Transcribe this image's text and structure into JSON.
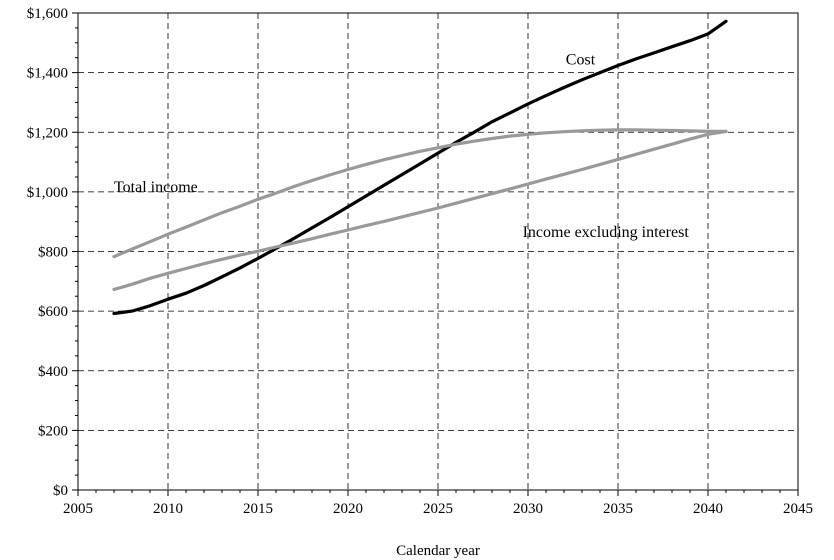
{
  "chart_data": {
    "type": "line",
    "title": "",
    "xlabel": "Calendar year",
    "ylabel": "",
    "xlim": [
      2005,
      2045
    ],
    "ylim": [
      0,
      1600
    ],
    "grid": true,
    "legend": "none",
    "xticks": [
      {
        "value": 2005,
        "label": "2005"
      },
      {
        "value": 2010,
        "label": "2010"
      },
      {
        "value": 2015,
        "label": "2015"
      },
      {
        "value": 2020,
        "label": "2020"
      },
      {
        "value": 2025,
        "label": "2025"
      },
      {
        "value": 2030,
        "label": "2030"
      },
      {
        "value": 2035,
        "label": "2035"
      },
      {
        "value": 2040,
        "label": "2040"
      },
      {
        "value": 2045,
        "label": "2045"
      }
    ],
    "yticks": [
      {
        "value": 0,
        "label": "$0"
      },
      {
        "value": 200,
        "label": "$200"
      },
      {
        "value": 400,
        "label": "$400"
      },
      {
        "value": 600,
        "label": "$600"
      },
      {
        "value": 800,
        "label": "$800"
      },
      {
        "value": 1000,
        "label": "$1,000"
      },
      {
        "value": 1200,
        "label": "$1,200"
      },
      {
        "value": 1400,
        "label": "$1,400"
      },
      {
        "value": 1600,
        "label": "$1,600"
      }
    ],
    "series": [
      {
        "name": "Cost",
        "color": "#000000",
        "x": [
          2007,
          2008,
          2009,
          2010,
          2011,
          2012,
          2013,
          2014,
          2015,
          2016,
          2017,
          2018,
          2019,
          2020,
          2021,
          2022,
          2023,
          2024,
          2025,
          2026,
          2027,
          2028,
          2029,
          2030,
          2031,
          2032,
          2033,
          2034,
          2035,
          2036,
          2037,
          2038,
          2039,
          2040,
          2041
        ],
        "values": [
          592,
          600,
          618,
          640,
          660,
          686,
          715,
          745,
          777,
          810,
          844,
          879,
          914,
          950,
          986,
          1022,
          1058,
          1094,
          1130,
          1166,
          1200,
          1235,
          1265,
          1295,
          1323,
          1350,
          1376,
          1400,
          1424,
          1446,
          1466,
          1487,
          1507,
          1530,
          1572
        ]
      },
      {
        "name": "Total income",
        "color": "#999999",
        "x": [
          2007,
          2008,
          2009,
          2010,
          2011,
          2012,
          2013,
          2014,
          2015,
          2016,
          2017,
          2018,
          2019,
          2020,
          2021,
          2022,
          2023,
          2024,
          2025,
          2026,
          2027,
          2028,
          2029,
          2030,
          2031,
          2032,
          2033,
          2034,
          2035,
          2036,
          2037,
          2038,
          2039,
          2040,
          2041
        ],
        "values": [
          783,
          808,
          833,
          858,
          882,
          906,
          930,
          952,
          975,
          996,
          1018,
          1038,
          1057,
          1075,
          1092,
          1108,
          1122,
          1136,
          1148,
          1160,
          1170,
          1179,
          1187,
          1193,
          1198,
          1202,
          1205,
          1207,
          1208,
          1208,
          1207,
          1206,
          1205,
          1203,
          1203
        ]
      },
      {
        "name": "Income excluding interest",
        "color": "#999999",
        "x": [
          2007,
          2008,
          2009,
          2010,
          2011,
          2012,
          2013,
          2014,
          2015,
          2016,
          2017,
          2018,
          2019,
          2020,
          2021,
          2022,
          2023,
          2024,
          2025,
          2026,
          2027,
          2028,
          2029,
          2030,
          2031,
          2032,
          2033,
          2034,
          2035,
          2036,
          2037,
          2038,
          2039,
          2040,
          2041
        ],
        "values": [
          673,
          690,
          710,
          727,
          743,
          759,
          774,
          788,
          801,
          815,
          829,
          843,
          858,
          872,
          887,
          901,
          916,
          931,
          946,
          962,
          978,
          994,
          1010,
          1026,
          1043,
          1059,
          1075,
          1092,
          1109,
          1126,
          1143,
          1160,
          1177,
          1193,
          1203
        ]
      }
    ],
    "annotations": [
      {
        "text": "Cost",
        "x": 2032.1,
        "y": 1444
      },
      {
        "text": "Total income",
        "x": 2007.0,
        "y": 1016
      },
      {
        "text": "Income excluding interest",
        "x": 2029.7,
        "y": 866
      }
    ]
  }
}
